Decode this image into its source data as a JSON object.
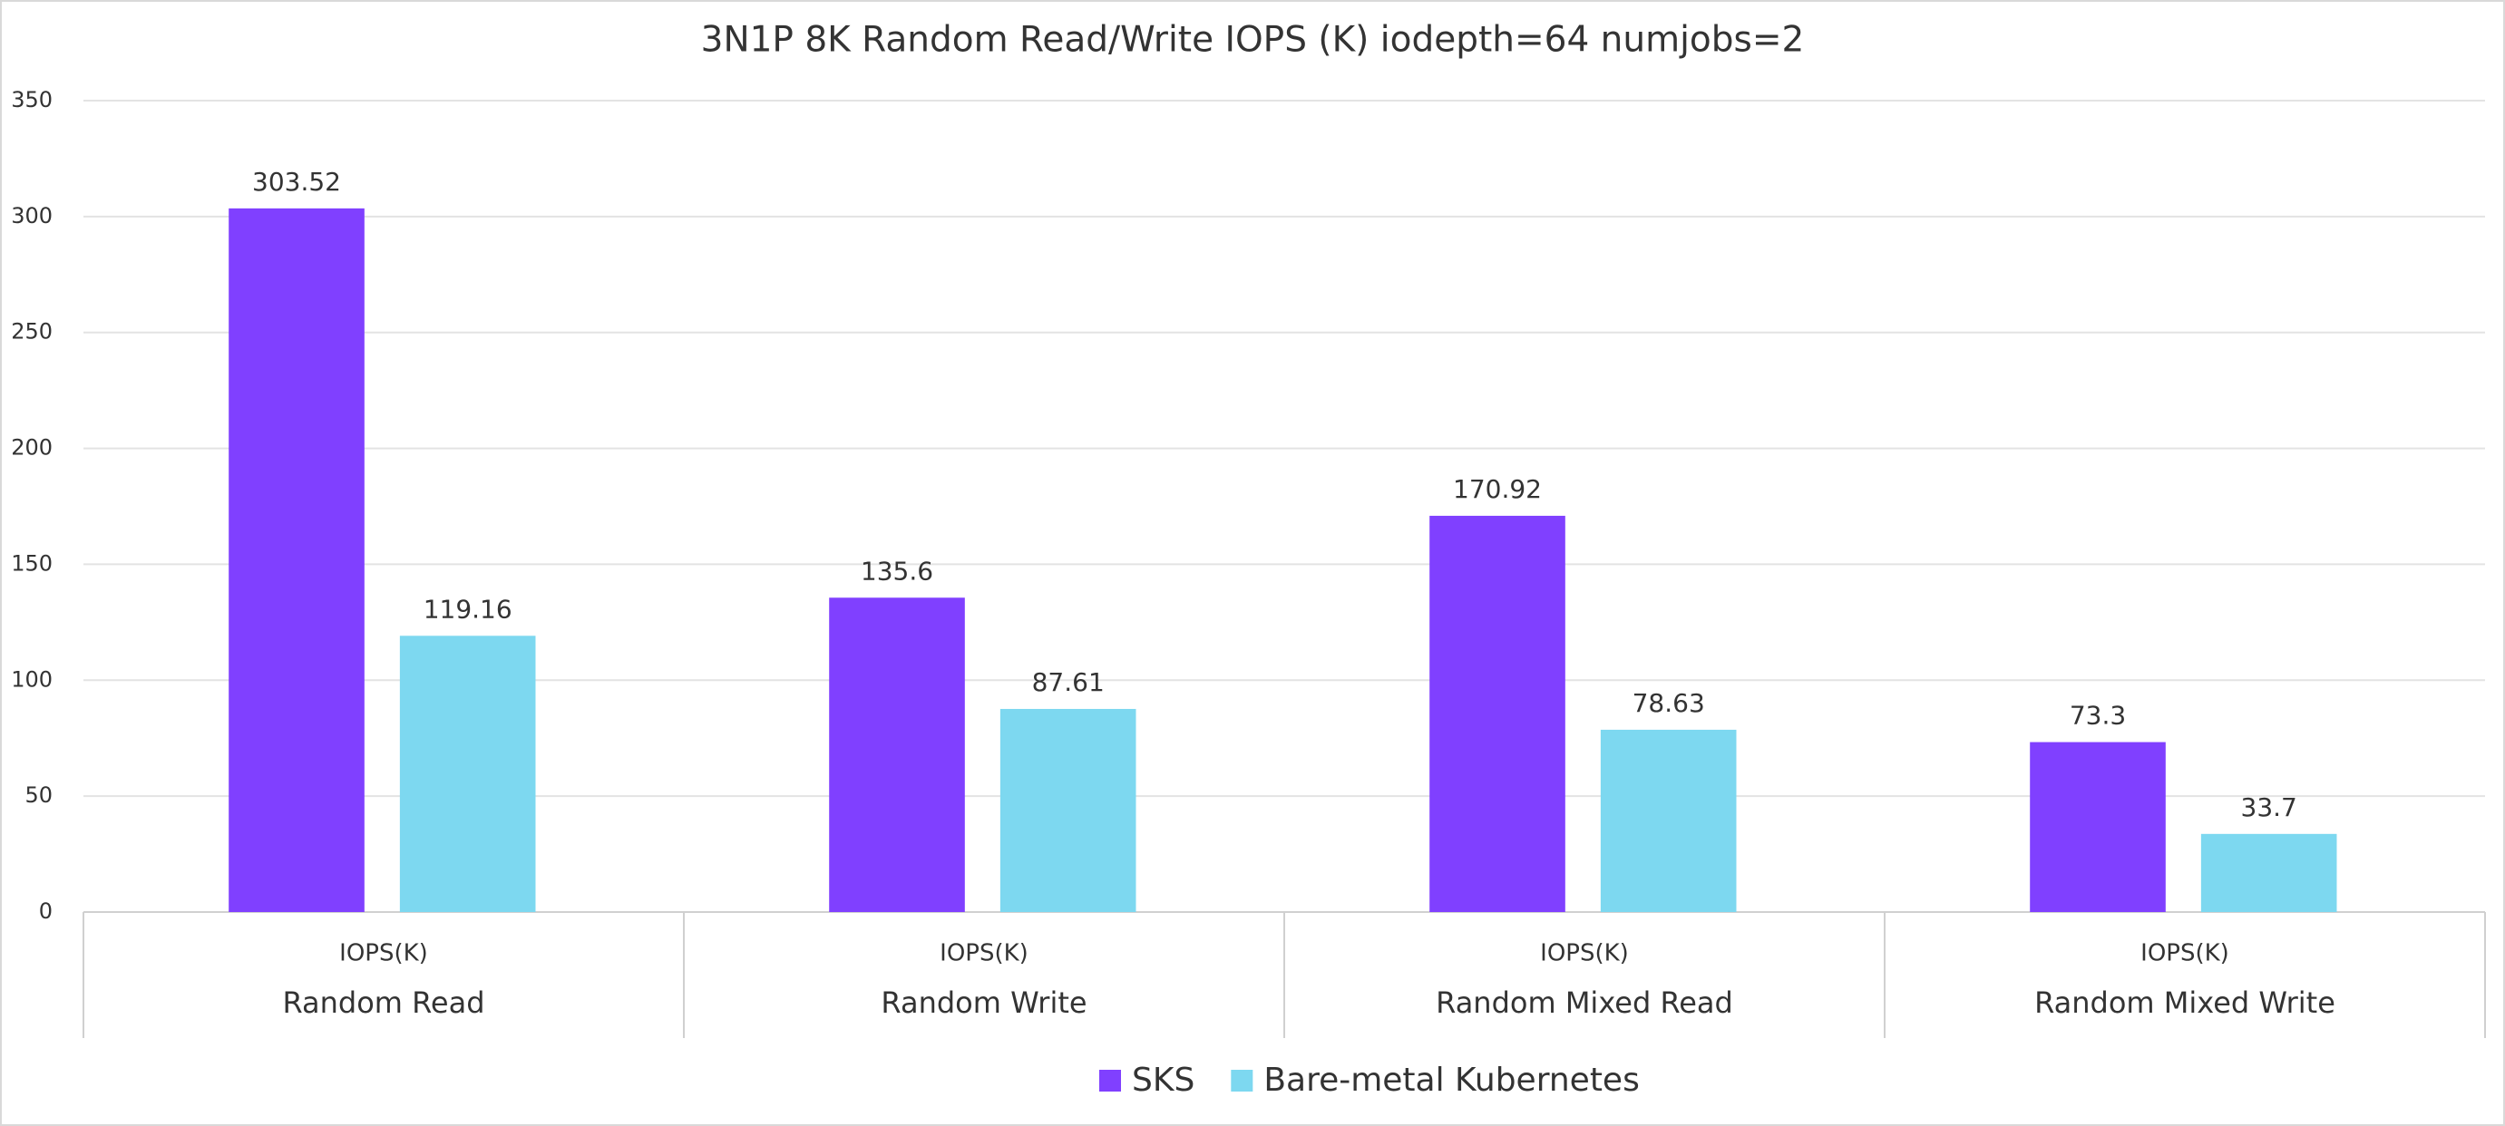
{
  "chart_data": {
    "type": "bar",
    "title": "3N1P 8K Random Read/Write IOPS (K) iodepth=64 numjobs=2",
    "categories": [
      "Random Read",
      "Random Write",
      "Random Mixed Read",
      "Random Mixed Write"
    ],
    "sub_categories": [
      "IOPS(K)",
      "IOPS(K)",
      "IOPS(K)",
      "IOPS(K)"
    ],
    "series": [
      {
        "name": "SKS",
        "color": "#8040ff",
        "values": [
          303.52,
          135.6,
          170.92,
          73.3
        ]
      },
      {
        "name": "Bare-metal Kubernetes",
        "color": "#7dd8f0",
        "values": [
          119.16,
          87.61,
          78.63,
          33.7
        ]
      }
    ],
    "ylim": [
      0,
      350
    ],
    "yticks": [
      0,
      50,
      100,
      150,
      200,
      250,
      300,
      350
    ],
    "grid": true,
    "legend": "bottom"
  }
}
